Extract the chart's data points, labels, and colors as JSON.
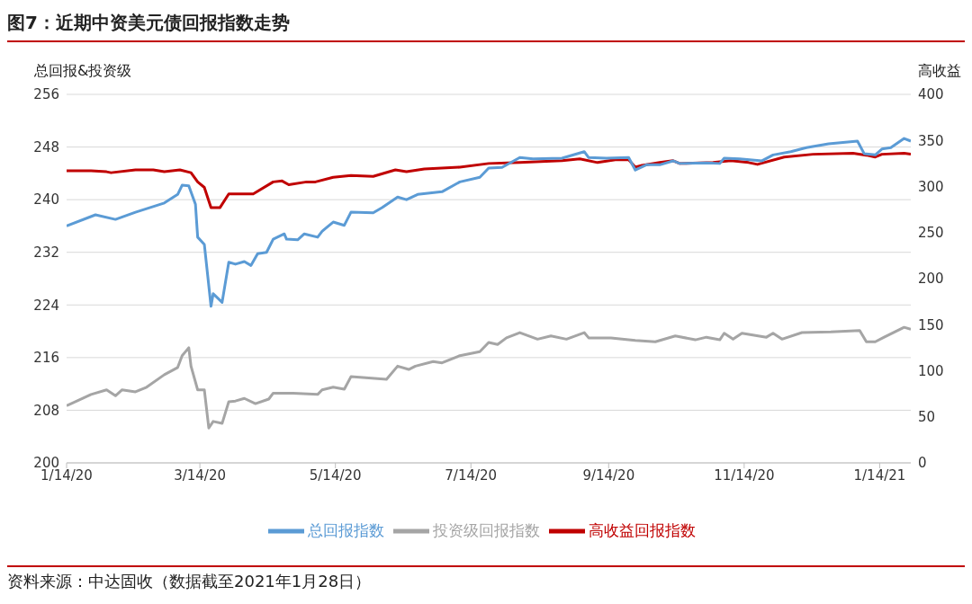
{
  "chart_data": {
    "type": "line",
    "title": "图7：近期中资美元债回报指数走势",
    "ylabel": "总回报&投资级",
    "y2label": "高收益",
    "annotations": [
      "资料来源：中达固收（数据截至2021年1月28日）"
    ],
    "xlim": [
      "2020-01-14",
      "2021-01-28"
    ],
    "xticks": [
      {
        "value": "2020-01-14",
        "label": "1/14/20"
      },
      {
        "value": "2020-03-14",
        "label": "3/14/20"
      },
      {
        "value": "2020-05-14",
        "label": "5/14/20"
      },
      {
        "value": "2020-07-14",
        "label": "7/14/20"
      },
      {
        "value": "2020-09-14",
        "label": "9/14/20"
      },
      {
        "value": "2020-11-14",
        "label": "11/14/20"
      },
      {
        "value": "2021-01-14",
        "label": "1/14/21"
      }
    ],
    "ylim": [
      200,
      256
    ],
    "yticks": [
      200,
      208,
      216,
      224,
      232,
      240,
      248,
      256
    ],
    "y2lim": [
      0,
      400
    ],
    "y2ticks": [
      0,
      50,
      100,
      150,
      200,
      250,
      300,
      350,
      400
    ],
    "grid": "y",
    "legend": "bottom",
    "marker": "none",
    "line_style": "solid",
    "series": [
      {
        "name": "总回报指数",
        "color": "#5b9bd5",
        "x": [
          "2020-01-14",
          "2020-01-27",
          "2020-02-05",
          "2020-02-14",
          "2020-02-27",
          "2020-03-04",
          "2020-03-06",
          "2020-03-09",
          "2020-03-12",
          "2020-03-13",
          "2020-03-16",
          "2020-03-19",
          "2020-03-20",
          "2020-03-24",
          "2020-03-27",
          "2020-03-30",
          "2020-04-03",
          "2020-04-06",
          "2020-04-09",
          "2020-04-13",
          "2020-04-16",
          "2020-04-21",
          "2020-04-22",
          "2020-04-27",
          "2020-04-30",
          "2020-05-06",
          "2020-05-08",
          "2020-05-13",
          "2020-05-18",
          "2020-05-21",
          "2020-05-31",
          "2020-06-04",
          "2020-06-11",
          "2020-06-15",
          "2020-06-20",
          "2020-07-01",
          "2020-07-09",
          "2020-07-18",
          "2020-07-22",
          "2020-07-28",
          "2020-08-05",
          "2020-08-11",
          "2020-08-24",
          "2020-09-03",
          "2020-09-05",
          "2020-09-13",
          "2020-09-23",
          "2020-09-26",
          "2020-10-01",
          "2020-10-07",
          "2020-10-13",
          "2020-10-16",
          "2020-10-28",
          "2020-11-03",
          "2020-11-05",
          "2020-11-12",
          "2020-11-22",
          "2020-11-27",
          "2020-12-05",
          "2020-12-12",
          "2020-12-22",
          "2021-01-04",
          "2021-01-07",
          "2021-01-12",
          "2021-01-15",
          "2021-01-19",
          "2021-01-25",
          "2021-01-28"
        ],
        "values": [
          236.0,
          237.7,
          237.0,
          238.1,
          239.5,
          240.8,
          242.2,
          242.1,
          239.3,
          234.3,
          233.2,
          223.8,
          225.7,
          224.4,
          230.5,
          230.2,
          230.6,
          230.0,
          231.8,
          232.0,
          234.0,
          234.8,
          234.0,
          233.9,
          234.8,
          234.3,
          235.2,
          236.6,
          236.1,
          238.1,
          238.0,
          238.8,
          240.4,
          240.0,
          240.8,
          241.2,
          242.7,
          243.4,
          244.8,
          244.9,
          246.4,
          246.2,
          246.3,
          247.3,
          246.4,
          246.3,
          246.4,
          244.5,
          245.3,
          245.3,
          245.9,
          245.5,
          245.6,
          245.5,
          246.3,
          246.2,
          245.9,
          246.8,
          247.3,
          247.9,
          248.5,
          248.9,
          247.0,
          246.8,
          247.7,
          247.9,
          249.3,
          248.9
        ]
      },
      {
        "name": "投资级回报指数",
        "color": "#a5a5a5",
        "x": [
          "2020-01-14",
          "2020-01-18",
          "2020-01-25",
          "2020-02-01",
          "2020-02-05",
          "2020-02-08",
          "2020-02-14",
          "2020-02-19",
          "2020-02-27",
          "2020-03-04",
          "2020-03-06",
          "2020-03-09",
          "2020-03-10",
          "2020-03-13",
          "2020-03-16",
          "2020-03-18",
          "2020-03-20",
          "2020-03-24",
          "2020-03-27",
          "2020-03-30",
          "2020-04-03",
          "2020-04-08",
          "2020-04-14",
          "2020-04-16",
          "2020-04-25",
          "2020-05-06",
          "2020-05-08",
          "2020-05-13",
          "2020-05-18",
          "2020-05-21",
          "2020-06-06",
          "2020-06-11",
          "2020-06-16",
          "2020-06-19",
          "2020-06-27",
          "2020-07-01",
          "2020-07-09",
          "2020-07-18",
          "2020-07-22",
          "2020-07-26",
          "2020-07-30",
          "2020-08-05",
          "2020-08-13",
          "2020-08-19",
          "2020-08-26",
          "2020-09-03",
          "2020-09-05",
          "2020-09-15",
          "2020-09-26",
          "2020-10-05",
          "2020-10-14",
          "2020-10-23",
          "2020-10-28",
          "2020-11-03",
          "2020-11-05",
          "2020-11-09",
          "2020-11-13",
          "2020-11-24",
          "2020-11-27",
          "2020-12-01",
          "2020-12-10",
          "2020-12-23",
          "2021-01-05",
          "2021-01-08",
          "2021-01-12",
          "2021-01-16",
          "2021-01-25",
          "2021-01-28"
        ],
        "values": [
          208.7,
          209.3,
          210.4,
          211.1,
          210.2,
          211.1,
          210.8,
          211.5,
          213.4,
          214.5,
          216.3,
          217.5,
          214.7,
          211.1,
          211.1,
          205.3,
          206.3,
          206.0,
          209.3,
          209.4,
          209.8,
          209.0,
          209.7,
          210.6,
          210.6,
          210.4,
          211.1,
          211.5,
          211.2,
          213.1,
          212.7,
          214.7,
          214.2,
          214.7,
          215.4,
          215.2,
          216.3,
          216.9,
          218.3,
          218.0,
          219.0,
          219.8,
          218.8,
          219.3,
          218.8,
          219.8,
          219.0,
          219.0,
          218.6,
          218.4,
          219.3,
          218.7,
          219.1,
          218.7,
          219.7,
          218.8,
          219.7,
          219.1,
          219.7,
          218.8,
          219.8,
          219.9,
          220.1,
          218.4,
          218.4,
          219.1,
          220.6,
          220.3
        ]
      },
      {
        "name": "高收益回报指数",
        "color": "#c00000",
        "axis": "y2",
        "x": [
          "2020-01-14",
          "2020-01-25",
          "2020-02-01",
          "2020-02-03",
          "2020-02-14",
          "2020-02-22",
          "2020-02-27",
          "2020-03-05",
          "2020-03-10",
          "2020-03-13",
          "2020-03-16",
          "2020-03-19",
          "2020-03-23",
          "2020-03-27",
          "2020-04-07",
          "2020-04-16",
          "2020-04-20",
          "2020-04-23",
          "2020-05-01",
          "2020-05-05",
          "2020-05-13",
          "2020-05-21",
          "2020-05-31",
          "2020-06-10",
          "2020-06-15",
          "2020-06-23",
          "2020-07-09",
          "2020-07-22",
          "2020-08-05",
          "2020-08-24",
          "2020-09-01",
          "2020-09-09",
          "2020-09-17",
          "2020-09-23",
          "2020-09-26",
          "2020-09-29",
          "2020-10-07",
          "2020-10-13",
          "2020-10-16",
          "2020-10-31",
          "2020-11-08",
          "2020-11-16",
          "2020-11-20",
          "2020-12-02",
          "2020-12-15",
          "2021-01-02",
          "2021-01-08",
          "2021-01-12",
          "2021-01-15",
          "2021-01-25",
          "2021-01-28"
        ],
        "values": [
          317,
          317,
          316,
          315,
          318,
          318,
          316,
          318,
          315,
          305,
          299,
          277,
          277,
          292,
          292,
          305,
          306,
          302,
          305,
          305,
          310,
          312,
          311,
          318,
          316,
          319,
          321,
          325,
          326,
          328,
          330,
          326,
          329,
          329,
          321,
          323,
          326,
          328,
          325,
          326,
          328,
          326,
          324,
          332,
          335,
          336,
          334,
          332,
          335,
          336,
          335
        ]
      }
    ]
  }
}
